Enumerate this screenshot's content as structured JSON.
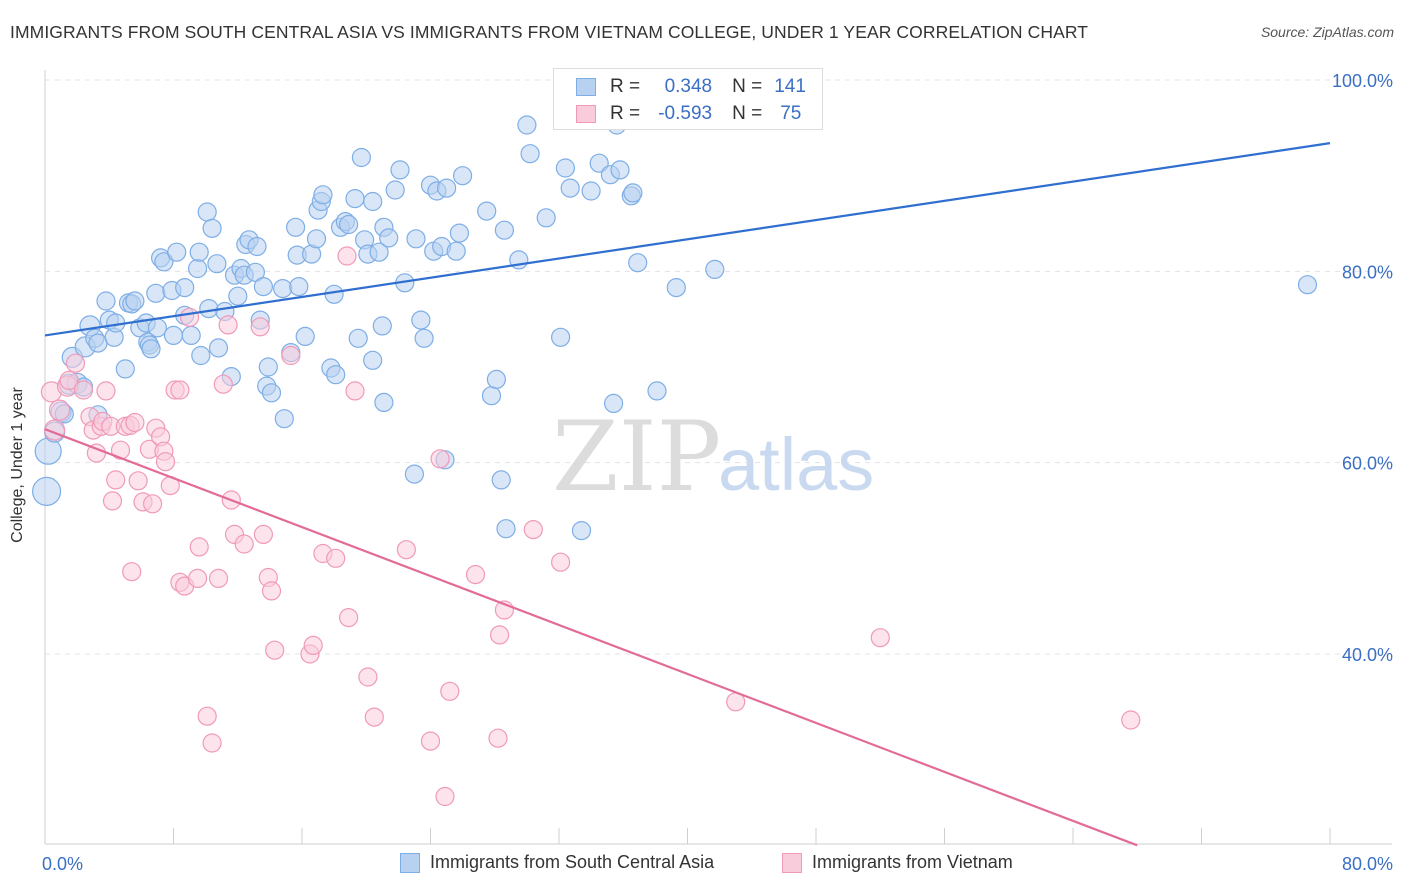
{
  "header": {
    "title": "IMMIGRANTS FROM SOUTH CENTRAL ASIA VS IMMIGRANTS FROM VIETNAM COLLEGE, UNDER 1 YEAR CORRELATION CHART",
    "source": "Source: ZipAtlas.com"
  },
  "watermark": {
    "zip": "ZIP",
    "atlas": "atlas"
  },
  "legend_top": {
    "rows": [
      {
        "r_label": "R =",
        "r_value": "0.348",
        "n_label": "N =",
        "n_value": "141",
        "color": "#7eaee6",
        "fill": "#b8d1f1"
      },
      {
        "r_label": "R =",
        "r_value": "-0.593",
        "n_label": "N =",
        "n_value": "75",
        "color": "#f09ab8",
        "fill": "#f9ccdc"
      }
    ]
  },
  "legend_bottom": {
    "items": [
      {
        "label": "Immigrants from South Central Asia",
        "color": "#7eaee6",
        "fill": "#b8d1f1"
      },
      {
        "label": "Immigrants from Vietnam",
        "color": "#f09ab8",
        "fill": "#f9ccdc"
      }
    ]
  },
  "chart_data": {
    "type": "scatter",
    "title": "IMMIGRANTS FROM SOUTH CENTRAL ASIA VS IMMIGRANTS FROM VIETNAM COLLEGE, UNDER 1 YEAR CORRELATION CHART",
    "xlabel": "",
    "ylabel": "College, Under 1 year",
    "xlim": [
      0,
      80
    ],
    "ylim": [
      18,
      103
    ],
    "x_tick_labels": [
      "0.0%",
      "80.0%"
    ],
    "y_tick_labels": [
      "100.0%",
      "80.0%",
      "60.0%",
      "40.0%"
    ],
    "y_ticks": [
      100,
      80,
      60,
      40
    ],
    "grid": true,
    "legend_position": "top-center",
    "series": [
      {
        "name": "Immigrants from South Central Asia",
        "color": "#7eaee6",
        "fill": "#b8d1f1",
        "trend_color": "#2f6fd0",
        "trend": [
          [
            0,
            73.3
          ],
          [
            80,
            93.4
          ]
        ],
        "points": [
          [
            0.1,
            57.0,
            14
          ],
          [
            0.2,
            61.2,
            13
          ],
          [
            0.6,
            63.2,
            10
          ],
          [
            1.0,
            65.3,
            10
          ],
          [
            1.2,
            65.1,
            9
          ],
          [
            1.5,
            68.2,
            10
          ],
          [
            1.7,
            71.0,
            10
          ],
          [
            2.0,
            68.3,
            10
          ],
          [
            2.4,
            67.9,
            9
          ],
          [
            2.5,
            72.1,
            10
          ],
          [
            2.8,
            74.3,
            10
          ],
          [
            3.1,
            73.0,
            9
          ],
          [
            3.3,
            72.5,
            9
          ],
          [
            3.3,
            65.0,
            9
          ],
          [
            3.8,
            76.9,
            9
          ],
          [
            4.0,
            74.9,
            9
          ],
          [
            4.3,
            73.1,
            9
          ],
          [
            4.4,
            74.6,
            9
          ],
          [
            5.0,
            69.8,
            9
          ],
          [
            5.2,
            76.7,
            9
          ],
          [
            5.4,
            76.6,
            9
          ],
          [
            5.6,
            76.9,
            9
          ],
          [
            5.9,
            74.1,
            9
          ],
          [
            6.3,
            74.6,
            9
          ],
          [
            6.4,
            72.6,
            9
          ],
          [
            6.5,
            72.3,
            9
          ],
          [
            6.6,
            71.9,
            9
          ],
          [
            6.9,
            77.7,
            9
          ],
          [
            7.0,
            74.1,
            9
          ],
          [
            7.2,
            81.4,
            9
          ],
          [
            7.4,
            81.0,
            9
          ],
          [
            7.9,
            78.0,
            9
          ],
          [
            8.0,
            73.3,
            9
          ],
          [
            8.2,
            82.0,
            9
          ],
          [
            8.7,
            75.4,
            9
          ],
          [
            8.7,
            78.3,
            9
          ],
          [
            9.1,
            73.3,
            9
          ],
          [
            9.5,
            80.3,
            9
          ],
          [
            9.6,
            82.0,
            9
          ],
          [
            9.7,
            71.2,
            9
          ],
          [
            10.1,
            86.2,
            9
          ],
          [
            10.2,
            76.1,
            9
          ],
          [
            10.4,
            84.5,
            9
          ],
          [
            10.7,
            80.8,
            9
          ],
          [
            10.8,
            72.0,
            9
          ],
          [
            11.2,
            75.8,
            9
          ],
          [
            11.6,
            69.0,
            9
          ],
          [
            11.8,
            79.6,
            9
          ],
          [
            12.0,
            77.4,
            9
          ],
          [
            12.2,
            80.3,
            9
          ],
          [
            12.4,
            79.6,
            9
          ],
          [
            12.5,
            82.8,
            9
          ],
          [
            12.7,
            83.3,
            9
          ],
          [
            13.1,
            79.9,
            9
          ],
          [
            13.2,
            82.6,
            9
          ],
          [
            13.4,
            74.9,
            9
          ],
          [
            13.6,
            78.4,
            9
          ],
          [
            13.8,
            68.0,
            9
          ],
          [
            13.9,
            70.0,
            9
          ],
          [
            14.1,
            67.3,
            9
          ],
          [
            14.8,
            78.2,
            9
          ],
          [
            14.9,
            64.6,
            9
          ],
          [
            15.3,
            71.5,
            9
          ],
          [
            15.6,
            84.6,
            9
          ],
          [
            15.7,
            81.7,
            9
          ],
          [
            15.8,
            78.4,
            9
          ],
          [
            16.2,
            73.2,
            9
          ],
          [
            16.6,
            81.8,
            9
          ],
          [
            16.9,
            83.4,
            9
          ],
          [
            17.0,
            86.4,
            9
          ],
          [
            17.2,
            87.3,
            9
          ],
          [
            17.3,
            88.0,
            9
          ],
          [
            17.8,
            69.9,
            9
          ],
          [
            18.0,
            77.6,
            9
          ],
          [
            18.1,
            69.2,
            9
          ],
          [
            18.4,
            84.6,
            9
          ],
          [
            18.7,
            85.2,
            9
          ],
          [
            18.9,
            84.9,
            9
          ],
          [
            19.3,
            87.6,
            9
          ],
          [
            19.5,
            73.0,
            9
          ],
          [
            19.7,
            91.9,
            9
          ],
          [
            19.9,
            83.3,
            9
          ],
          [
            20.1,
            81.8,
            9
          ],
          [
            20.4,
            87.3,
            9
          ],
          [
            20.4,
            70.7,
            9
          ],
          [
            20.8,
            82.0,
            9
          ],
          [
            21.0,
            74.3,
            9
          ],
          [
            21.1,
            66.3,
            9
          ],
          [
            21.1,
            84.6,
            9
          ],
          [
            21.4,
            83.5,
            9
          ],
          [
            21.8,
            88.5,
            9
          ],
          [
            22.1,
            90.6,
            9
          ],
          [
            22.4,
            78.8,
            9
          ],
          [
            23.0,
            58.8,
            9
          ],
          [
            23.1,
            83.4,
            9
          ],
          [
            23.4,
            74.9,
            9
          ],
          [
            23.6,
            73.0,
            9
          ],
          [
            24.0,
            89.0,
            9
          ],
          [
            24.2,
            82.1,
            9
          ],
          [
            24.4,
            88.4,
            9
          ],
          [
            24.7,
            82.6,
            9
          ],
          [
            24.9,
            60.3,
            9
          ],
          [
            25.0,
            88.7,
            9
          ],
          [
            25.6,
            82.1,
            9
          ],
          [
            25.8,
            84.0,
            9
          ],
          [
            26.0,
            90.0,
            9
          ],
          [
            27.5,
            86.3,
            9
          ],
          [
            27.8,
            67.0,
            9
          ],
          [
            28.1,
            68.7,
            9
          ],
          [
            28.4,
            58.2,
            9
          ],
          [
            28.6,
            84.3,
            9
          ],
          [
            28.7,
            53.1,
            9
          ],
          [
            29.5,
            81.2,
            9
          ],
          [
            30.0,
            95.3,
            9
          ],
          [
            30.2,
            92.3,
            9
          ],
          [
            31.2,
            85.6,
            9
          ],
          [
            32.1,
            73.1,
            9
          ],
          [
            32.4,
            90.8,
            9
          ],
          [
            32.7,
            88.7,
            9
          ],
          [
            33.4,
            52.9,
            9
          ],
          [
            34.0,
            88.4,
            9
          ],
          [
            34.5,
            91.3,
            9
          ],
          [
            35.2,
            90.1,
            9
          ],
          [
            35.4,
            66.2,
            9
          ],
          [
            35.6,
            95.3,
            9
          ],
          [
            35.8,
            90.6,
            9
          ],
          [
            36.5,
            87.9,
            9
          ],
          [
            36.6,
            88.2,
            9
          ],
          [
            36.9,
            80.9,
            9
          ],
          [
            38.1,
            67.5,
            9
          ],
          [
            39.3,
            78.3,
            9
          ],
          [
            41.7,
            80.2,
            9
          ],
          [
            78.6,
            78.6,
            9
          ]
        ]
      },
      {
        "name": "Immigrants from Vietnam",
        "color": "#f09ab8",
        "fill": "#f9ccdc",
        "trend_color": "#e26b98",
        "trend": [
          [
            0,
            63.5
          ],
          [
            68,
            20.0
          ]
        ],
        "points": [
          [
            0.4,
            67.4,
            10
          ],
          [
            0.6,
            63.4,
            10
          ],
          [
            0.9,
            65.5,
            10
          ],
          [
            1.4,
            68.0,
            10
          ],
          [
            1.5,
            68.6,
            9
          ],
          [
            1.9,
            70.4,
            9
          ],
          [
            2.4,
            67.6,
            9
          ],
          [
            2.8,
            64.8,
            9
          ],
          [
            3.0,
            63.4,
            9
          ],
          [
            3.2,
            61.0,
            9
          ],
          [
            3.5,
            63.8,
            9
          ],
          [
            3.6,
            64.3,
            9
          ],
          [
            3.8,
            67.5,
            9
          ],
          [
            4.1,
            63.8,
            9
          ],
          [
            4.2,
            56.0,
            9
          ],
          [
            4.4,
            58.2,
            9
          ],
          [
            4.7,
            61.3,
            9
          ],
          [
            5.0,
            63.8,
            9
          ],
          [
            5.3,
            63.9,
            9
          ],
          [
            5.4,
            48.6,
            9
          ],
          [
            5.6,
            64.2,
            9
          ],
          [
            5.8,
            58.1,
            9
          ],
          [
            6.1,
            55.9,
            9
          ],
          [
            6.5,
            61.4,
            9
          ],
          [
            6.7,
            55.7,
            9
          ],
          [
            6.9,
            63.6,
            9
          ],
          [
            7.2,
            62.7,
            9
          ],
          [
            7.4,
            61.2,
            9
          ],
          [
            7.5,
            60.1,
            9
          ],
          [
            7.8,
            57.6,
            9
          ],
          [
            8.1,
            67.6,
            9
          ],
          [
            8.4,
            67.6,
            9
          ],
          [
            8.4,
            47.5,
            9
          ],
          [
            8.7,
            47.1,
            9
          ],
          [
            9.0,
            75.2,
            9
          ],
          [
            9.5,
            47.9,
            9
          ],
          [
            9.6,
            51.2,
            9
          ],
          [
            10.1,
            33.5,
            9
          ],
          [
            10.4,
            30.7,
            9
          ],
          [
            10.8,
            47.9,
            9
          ],
          [
            11.1,
            68.2,
            9
          ],
          [
            11.4,
            74.4,
            9
          ],
          [
            11.6,
            56.1,
            9
          ],
          [
            11.8,
            52.5,
            9
          ],
          [
            12.4,
            51.5,
            9
          ],
          [
            13.4,
            74.2,
            9
          ],
          [
            13.6,
            52.5,
            9
          ],
          [
            13.9,
            48.0,
            9
          ],
          [
            14.1,
            46.6,
            9
          ],
          [
            14.3,
            40.4,
            9
          ],
          [
            15.3,
            71.2,
            9
          ],
          [
            16.5,
            40.0,
            9
          ],
          [
            16.7,
            40.9,
            9
          ],
          [
            17.3,
            50.5,
            9
          ],
          [
            18.1,
            50.0,
            9
          ],
          [
            18.8,
            81.6,
            9
          ],
          [
            18.9,
            43.8,
            9
          ],
          [
            19.3,
            67.5,
            9
          ],
          [
            20.1,
            37.6,
            9
          ],
          [
            20.5,
            33.4,
            9
          ],
          [
            22.5,
            50.9,
            9
          ],
          [
            24.0,
            30.9,
            9
          ],
          [
            24.6,
            60.4,
            9
          ],
          [
            24.9,
            25.1,
            9
          ],
          [
            25.2,
            36.1,
            9
          ],
          [
            26.8,
            48.3,
            9
          ],
          [
            28.2,
            31.2,
            9
          ],
          [
            28.3,
            42.0,
            9
          ],
          [
            28.6,
            44.6,
            9
          ],
          [
            30.4,
            53.0,
            9
          ],
          [
            32.1,
            49.6,
            9
          ],
          [
            43.0,
            35.0,
            9
          ],
          [
            52.0,
            41.7,
            9
          ],
          [
            67.6,
            33.1,
            9
          ]
        ]
      }
    ]
  }
}
